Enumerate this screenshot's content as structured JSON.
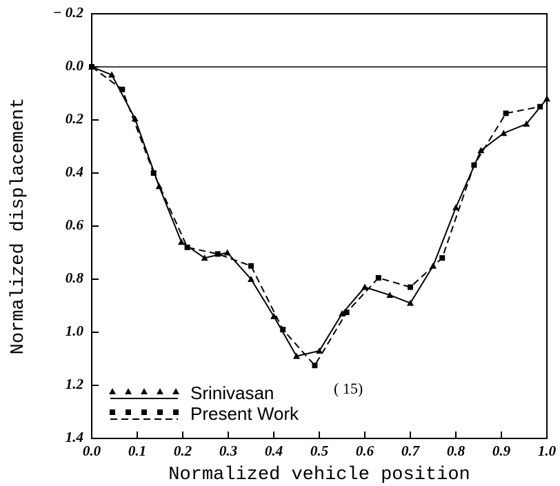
{
  "chart_data": {
    "type": "line",
    "xlabel": "Normalized vehicle position",
    "ylabel": "Normalized displacement",
    "annotation": "( 15)",
    "xlim": [
      0,
      1
    ],
    "xticks": [
      {
        "value": 0,
        "label": "0.0"
      },
      0.1,
      0.2,
      0.3,
      0.4,
      0.5,
      0.6,
      0.7,
      0.8,
      0.9,
      {
        "value": 1,
        "label": "1.0"
      }
    ],
    "ylim": [
      -0.2,
      1.4
    ],
    "y_reversed": true,
    "yticks": [
      {
        "value": -0.2,
        "label": "− 0.2"
      },
      {
        "value": 0,
        "label": "0.0"
      },
      0.2,
      0.4,
      0.6,
      0.8,
      {
        "value": 1,
        "label": "1.0"
      },
      1.2,
      1.4
    ],
    "legend": "lower left",
    "series": [
      {
        "name": "Srinivasan",
        "color": "#000000",
        "line": "solid",
        "marker": "triangle",
        "x": [
          0,
          0.044,
          0.095,
          0.148,
          0.197,
          0.248,
          0.298,
          0.35,
          0.4,
          0.45,
          0.5,
          0.55,
          0.6,
          0.655,
          0.7,
          0.75,
          0.8,
          0.855,
          0.905,
          0.955,
          1.0
        ],
        "values": [
          0,
          0.03,
          0.195,
          0.45,
          0.66,
          0.72,
          0.7,
          0.8,
          0.94,
          1.09,
          1.07,
          0.93,
          0.83,
          0.86,
          0.89,
          0.75,
          0.53,
          0.315,
          0.25,
          0.215,
          0.12
        ]
      },
      {
        "name": "Present Work",
        "color": "#000000",
        "line": "dashed",
        "marker": "square",
        "x": [
          0,
          0.067,
          0.136,
          0.21,
          0.277,
          0.35,
          0.42,
          0.49,
          0.56,
          0.63,
          0.7,
          0.77,
          0.84,
          0.91,
          0.985
        ],
        "values": [
          0,
          0.085,
          0.4,
          0.68,
          0.705,
          0.75,
          0.99,
          1.125,
          0.925,
          0.795,
          0.83,
          0.72,
          0.37,
          0.175,
          0.15
        ]
      }
    ]
  }
}
